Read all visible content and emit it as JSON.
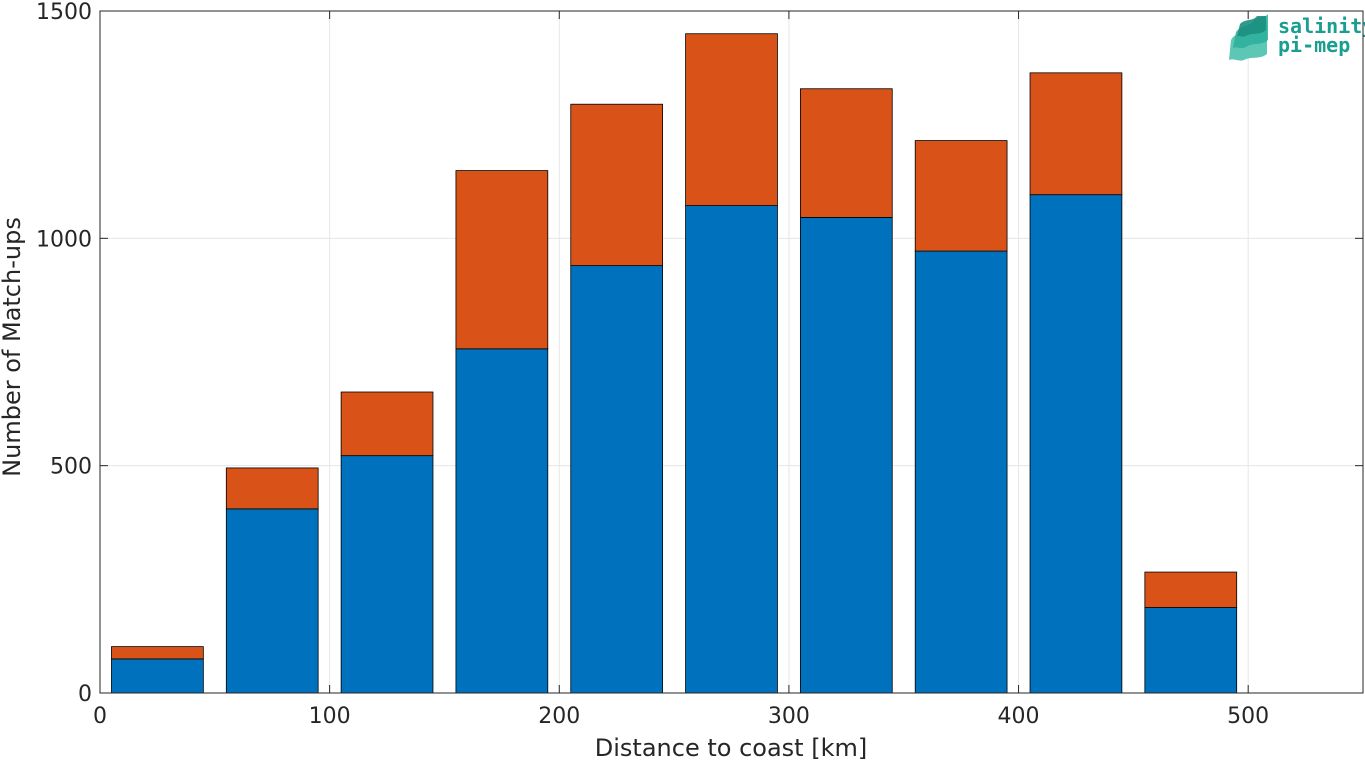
{
  "chart_data": {
    "type": "bar",
    "stacked": true,
    "x": [
      25,
      75,
      125,
      175,
      225,
      275,
      325,
      375,
      425,
      475
    ],
    "series": [
      {
        "values": [
          75,
          405,
          522,
          757,
          940,
          1072,
          1046,
          972,
          1096,
          188
        ],
        "color": "#0072bd"
      },
      {
        "values": [
          27,
          90,
          140,
          392,
          355,
          378,
          283,
          243,
          268,
          78
        ],
        "color": "#d95319"
      }
    ],
    "xlabel": "Distance to coast [km]",
    "ylabel": "Number of Match-ups",
    "xlim": [
      0,
      550
    ],
    "ylim": [
      0,
      1500
    ],
    "x_ticks": [
      0,
      100,
      200,
      300,
      400,
      500
    ],
    "y_ticks": [
      0,
      500,
      1000,
      1500
    ],
    "grid": true
  },
  "logo": {
    "line1": "salinity",
    "line2": "pi-mep"
  },
  "colors": {
    "axis": "#262626",
    "grid": "#e6e6e6",
    "logo": "#1a9e8f"
  }
}
